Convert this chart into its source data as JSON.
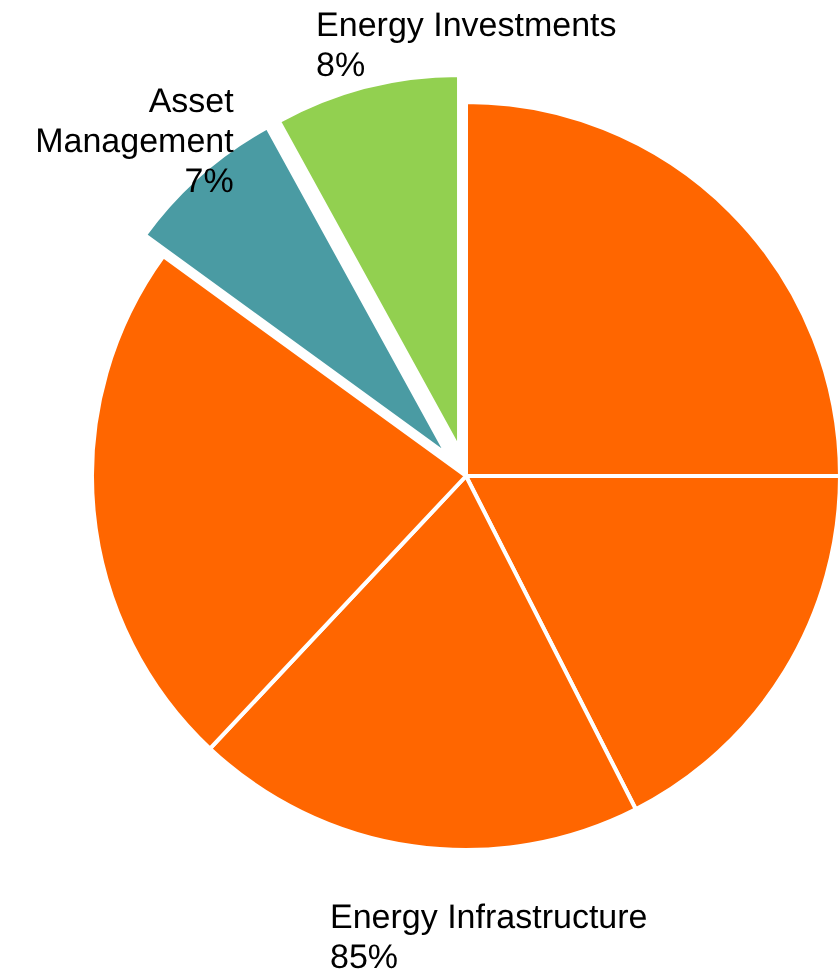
{
  "chart_data": {
    "type": "pie",
    "categories": [
      null,
      null,
      null,
      null,
      "Asset Management",
      "Energy Investments"
    ],
    "values": [
      25,
      17.5,
      19.5,
      23,
      7,
      8
    ],
    "value_labels": [
      null,
      null,
      null,
      null,
      "7%",
      "8%"
    ],
    "colors": [
      "#ff6600",
      "#ff6600",
      "#ff6600",
      "#ff6600",
      "#4a9ba3",
      "#92d050"
    ],
    "annotations": [
      "Energy Infrastructure",
      "85%"
    ]
  }
}
